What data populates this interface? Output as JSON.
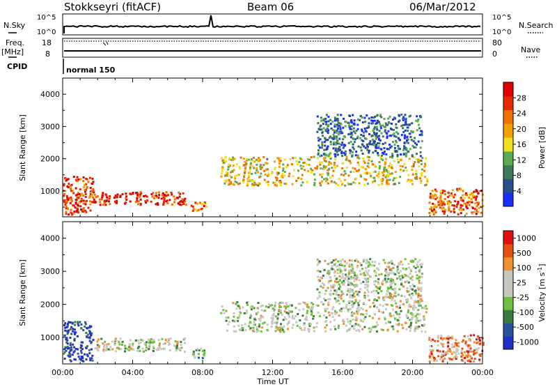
{
  "header": {
    "station": "Stokkseyri (fitACF)",
    "beam": "Beam 06",
    "date": "06/Mar/2012"
  },
  "status_panel": {
    "nsky_label": "N.Sky",
    "nsearch_label": "N.Search",
    "freq_label_1": "Freq.",
    "freq_label_2": "[MHz]",
    "nave_label": "Nave",
    "cpid_label": "CPID",
    "mode": "normal 150",
    "nsky_ticks": [
      "10^5",
      "10^0"
    ],
    "freq_ticks": [
      "18",
      "8"
    ],
    "nave_ticks": [
      "80",
      "0"
    ]
  },
  "colors": {
    "power_scale": [
      "#1a2dff",
      "#285090",
      "#3e7a5a",
      "#5aaa50",
      "#f0e020",
      "#f5a000",
      "#f07000",
      "#e82800",
      "#e00000"
    ],
    "velocity_scale": [
      "#2030c8",
      "#2a50a0",
      "#3d7a40",
      "#70c040",
      "#c8c8c0",
      "#c8c8c0",
      "#f09030",
      "#e85010",
      "#e01010"
    ]
  },
  "power_colorbar": {
    "label": "Power [dB]",
    "ticks": [
      "28",
      "24",
      "20",
      "16",
      "12",
      "8",
      "4"
    ]
  },
  "velocity_colorbar": {
    "label_text": "Velocity [m s",
    "label_sup": "-1",
    "label_end": "]",
    "ticks": [
      "1000",
      "500",
      "100",
      "25",
      "-25",
      "-100",
      "-500",
      "-1000"
    ]
  },
  "chart_data": [
    {
      "type": "heatmap",
      "name": "power",
      "ylabel": "Slant Range [km]",
      "yticks": [
        "4000",
        "3000",
        "2000",
        "1000"
      ],
      "ylim": [
        200,
        4500
      ],
      "xlim_hours": [
        0,
        24
      ],
      "scatter_regions": [
        {
          "t0": 0.0,
          "t1": 1.7,
          "r0": 300,
          "r1": 1500,
          "level": 0.85
        },
        {
          "t0": 1.7,
          "t1": 7.0,
          "r0": 600,
          "r1": 1000,
          "level": 0.9
        },
        {
          "t0": 7.3,
          "t1": 8.2,
          "r0": 400,
          "r1": 700,
          "level": 0.7
        },
        {
          "t0": 9.0,
          "t1": 20.8,
          "r0": 1200,
          "r1": 2100,
          "level": 0.55
        },
        {
          "t0": 14.5,
          "t1": 20.5,
          "r0": 2100,
          "r1": 3400,
          "level": 0.2
        },
        {
          "t0": 20.9,
          "t1": 24.0,
          "r0": 300,
          "r1": 1100,
          "level": 0.75
        }
      ]
    },
    {
      "type": "heatmap",
      "name": "velocity",
      "xlabel": "Time UT",
      "ylabel": "Slant Range [km]",
      "xticks": [
        "00:00",
        "04:00",
        "08:00",
        "12:00",
        "16:00",
        "20:00",
        "00:00"
      ],
      "yticks": [
        "4000",
        "3000",
        "2000",
        "1000"
      ],
      "ylim": [
        200,
        4500
      ],
      "xlim_hours": [
        0,
        24
      ],
      "scatter_regions": [
        {
          "t0": 0.0,
          "t1": 1.7,
          "r0": 300,
          "r1": 1500,
          "level": 0.1
        },
        {
          "t0": 1.7,
          "t1": 7.0,
          "r0": 600,
          "r1": 1000,
          "level": 0.5
        },
        {
          "t0": 7.3,
          "t1": 8.2,
          "r0": 400,
          "r1": 700,
          "level": 0.35
        },
        {
          "t0": 9.0,
          "t1": 20.8,
          "r0": 1200,
          "r1": 2100,
          "level": 0.5
        },
        {
          "t0": 14.5,
          "t1": 20.5,
          "r0": 2100,
          "r1": 3400,
          "level": 0.5
        },
        {
          "t0": 20.9,
          "t1": 24.0,
          "r0": 300,
          "r1": 1100,
          "level": 0.75
        }
      ]
    }
  ]
}
